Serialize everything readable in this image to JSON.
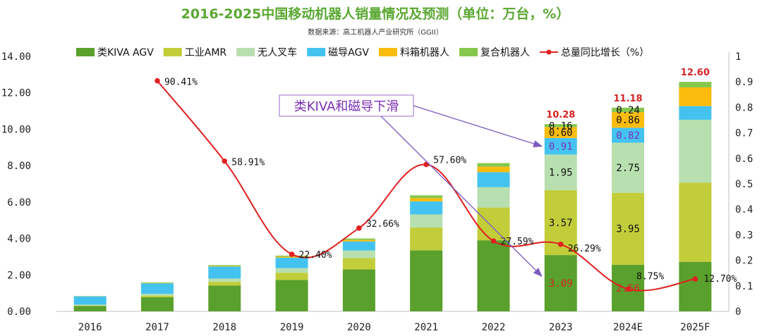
{
  "chart_data": {
    "type": "bar",
    "stacked": true,
    "title": "2016-2025中国移动机器人销量情况及预测（单位：万台，%）",
    "subtitle": "数据来源：高工机器人产业研究所（GGII）",
    "categories": [
      "2016",
      "2017",
      "2018",
      "2019",
      "2020",
      "2021",
      "2022",
      "2023",
      "2024E",
      "2025F"
    ],
    "y_ticks": [
      "0.00",
      "2.00",
      "4.00",
      "6.00",
      "8.00",
      "10.00",
      "12.00",
      "14.00"
    ],
    "y2_ticks": [
      "0",
      "0.1",
      "0.2",
      "0.3",
      "0.4",
      "0.5",
      "0.6",
      "0.7",
      "0.8",
      "0.9",
      "1"
    ],
    "ylim": [
      0,
      14
    ],
    "y2lim": [
      0,
      1
    ],
    "legend_position": "top",
    "series": [
      {
        "name": "类KIVA AGV",
        "color": "#5aa02c",
        "values": [
          0.3,
          0.78,
          1.42,
          1.72,
          2.3,
          3.35,
          3.9,
          3.09,
          2.56,
          2.72
        ]
      },
      {
        "name": "工业AMR",
        "color": "#c2cd3a",
        "values": [
          0.02,
          0.08,
          0.2,
          0.4,
          0.62,
          1.25,
          1.8,
          3.57,
          3.95,
          4.35
        ]
      },
      {
        "name": "无人叉车",
        "color": "#b8dfb0",
        "values": [
          0.05,
          0.1,
          0.18,
          0.25,
          0.42,
          0.72,
          1.12,
          1.95,
          2.75,
          3.45
        ]
      },
      {
        "name": "磁导AGV",
        "color": "#45c3f0",
        "values": [
          0.45,
          0.58,
          0.66,
          0.58,
          0.5,
          0.72,
          0.82,
          0.91,
          0.82,
          0.75
        ]
      },
      {
        "name": "料箱机器人",
        "color": "#fbbc0d",
        "values": [
          0.0,
          0.02,
          0.03,
          0.05,
          0.08,
          0.18,
          0.3,
          0.6,
          0.86,
          1.03
        ]
      },
      {
        "name": "复合机器人",
        "color": "#86c84e",
        "values": [
          0.02,
          0.03,
          0.05,
          0.06,
          0.08,
          0.15,
          0.2,
          0.16,
          0.24,
          0.3
        ]
      }
    ],
    "line_series": {
      "name": "总量同比增长（%）",
      "color": "#e02020",
      "axis": "right",
      "values": [
        null,
        0.9041,
        0.5891,
        0.224,
        0.3266,
        0.576,
        0.2759,
        0.2629,
        0.0875,
        0.127
      ]
    },
    "line_labels": [
      "",
      "90.41%",
      "58.91%",
      "22.40%",
      "32.66%",
      "57.60%",
      "27.59%",
      "26.29%",
      "8.75%",
      "12.70%"
    ],
    "segment_labels": [
      {
        "category": "2023",
        "series": "类KIVA AGV",
        "text": "3.09",
        "style": "red"
      },
      {
        "category": "2023",
        "series": "工业AMR",
        "text": "3.57",
        "style": "black"
      },
      {
        "category": "2023",
        "series": "无人叉车",
        "text": "1.95",
        "style": "black"
      },
      {
        "category": "2023",
        "series": "磁导AGV",
        "text": "0.91",
        "style": "purple"
      },
      {
        "category": "2023",
        "series": "料箱机器人",
        "text": "0.60",
        "style": "black"
      },
      {
        "category": "2023",
        "series": "复合机器人",
        "text": "0.16",
        "style": "black"
      },
      {
        "category": "2024E",
        "series": "类KIVA AGV",
        "text": "2.56",
        "style": "red"
      },
      {
        "category": "2024E",
        "series": "工业AMR",
        "text": "3.95",
        "style": "black"
      },
      {
        "category": "2024E",
        "series": "无人叉车",
        "text": "2.75",
        "style": "black"
      },
      {
        "category": "2024E",
        "series": "磁导AGV",
        "text": "0.82",
        "style": "purple"
      },
      {
        "category": "2024E",
        "series": "料箱机器人",
        "text": "0.86",
        "style": "black"
      },
      {
        "category": "2024E",
        "series": "复合机器人",
        "text": "0.24",
        "style": "black"
      }
    ],
    "total_labels": [
      {
        "category": "2023",
        "text": "10.28"
      },
      {
        "category": "2024E",
        "text": "11.18"
      },
      {
        "category": "2025F",
        "text": "12.60"
      }
    ],
    "annotation": {
      "text": "类KIVA和磁导下滑"
    }
  }
}
